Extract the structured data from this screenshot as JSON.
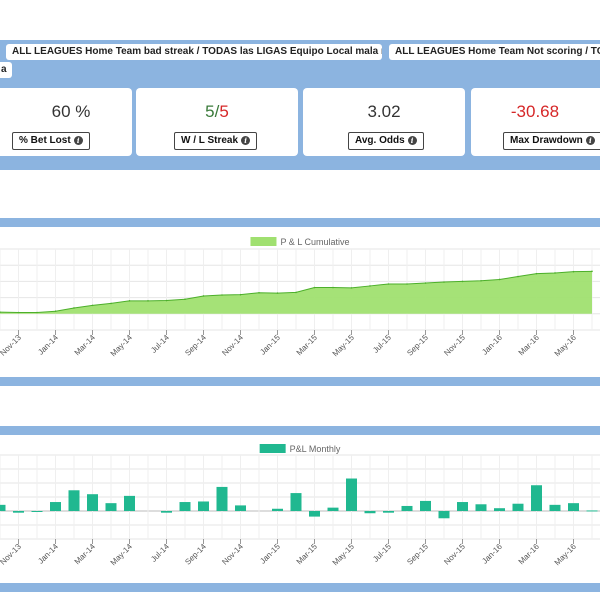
{
  "filters": [
    {
      "label": "ALL LEAGUES Home Team bad streak / TODAS las LIGAS Equipo Local mala racha"
    },
    {
      "label": "ALL LEAGUES Home Team Not scoring / TODA"
    },
    {
      "label": "a"
    }
  ],
  "stats": [
    {
      "value": "60 %",
      "label": "% Bet Lost"
    },
    {
      "value_a": "5",
      "value_sep": "/",
      "value_b": "5",
      "label": "W / L Streak"
    },
    {
      "value": "3.02",
      "label": "Avg. Odds"
    },
    {
      "value": "-30.68",
      "label": "Max Drawdown"
    }
  ],
  "colors": {
    "band": "#8cb4e0",
    "green_value": "#3a7a3a",
    "red_value": "#d62728",
    "cumulative_fill": "#a0e070",
    "cumulative_line": "#4caf2a",
    "monthly_bar": "#20b890"
  },
  "chart_data": [
    {
      "type": "area",
      "series": [
        {
          "name": "P & L Cumulative"
        }
      ],
      "x": [
        "Oct-13",
        "Nov-13",
        "Dec-13",
        "Jan-14",
        "Feb-14",
        "Mar-14",
        "Apr-14",
        "May-14",
        "Jun-14",
        "Jul-14",
        "Aug-14",
        "Sep-14",
        "Oct-14",
        "Nov-14",
        "Dec-14",
        "Jan-15",
        "Feb-15",
        "Mar-15",
        "Apr-15",
        "May-15",
        "Jun-15",
        "Jul-15",
        "Aug-15",
        "Sep-15",
        "Oct-15",
        "Nov-15",
        "Dec-15",
        "Jan-16",
        "Feb-16",
        "Mar-16",
        "Apr-16",
        "May-16",
        "Jun-16"
      ],
      "y": [
        0.5,
        0.4,
        0.4,
        0.8,
        1.8,
        2.6,
        3.2,
        4.0,
        4.0,
        4.1,
        4.5,
        5.5,
        5.8,
        5.9,
        6.5,
        6.4,
        6.6,
        8.1,
        8.1,
        8.0,
        8.6,
        9.2,
        9.2,
        9.5,
        9.8,
        10.0,
        10.2,
        10.6,
        11.5,
        12.4,
        12.6,
        13.0,
        13.1
      ],
      "x_ticks": [
        "Nov-13",
        "Jan-14",
        "Mar-14",
        "May-14",
        "Jul-14",
        "Sep-14",
        "Nov-14",
        "Jan-15",
        "Mar-15",
        "May-15",
        "Jul-15",
        "Sep-15",
        "Nov-15",
        "Jan-16",
        "Mar-16",
        "May-16"
      ],
      "ylim": [
        -5,
        20
      ],
      "grid": true,
      "legend": "top-center"
    },
    {
      "type": "bar",
      "series": [
        {
          "name": "P&L Monthly"
        }
      ],
      "x": [
        "Oct-13",
        "Nov-13",
        "Dec-13",
        "Jan-14",
        "Feb-14",
        "Mar-14",
        "Apr-14",
        "May-14",
        "Jun-14",
        "Jul-14",
        "Aug-14",
        "Sep-14",
        "Oct-14",
        "Nov-14",
        "Dec-14",
        "Jan-15",
        "Feb-15",
        "Mar-15",
        "Apr-15",
        "May-15",
        "Jun-15",
        "Jul-15",
        "Aug-15",
        "Sep-15",
        "Oct-15",
        "Nov-15",
        "Dec-15",
        "Jan-16",
        "Feb-16",
        "Mar-16",
        "Apr-16",
        "May-16",
        "Jun-16"
      ],
      "values": [
        1.1,
        -0.3,
        -0.1,
        1.6,
        3.7,
        3.0,
        1.4,
        2.7,
        0.0,
        -0.3,
        1.6,
        1.7,
        4.3,
        1.0,
        0.0,
        0.4,
        3.2,
        -1.0,
        0.6,
        5.8,
        -0.4,
        -0.3,
        0.9,
        1.8,
        -1.3,
        1.6,
        1.2,
        0.5,
        1.3,
        4.6,
        1.1,
        1.4,
        0.1
      ],
      "x_ticks": [
        "Nov-13",
        "Jan-14",
        "Mar-14",
        "May-14",
        "Jul-14",
        "Sep-14",
        "Nov-14",
        "Jan-15",
        "Mar-15",
        "May-15",
        "Jul-15",
        "Sep-15",
        "Nov-15",
        "Jan-16",
        "Mar-16",
        "May-16"
      ],
      "ylim": [
        -5,
        10
      ],
      "grid": true,
      "legend": "top-center"
    }
  ]
}
